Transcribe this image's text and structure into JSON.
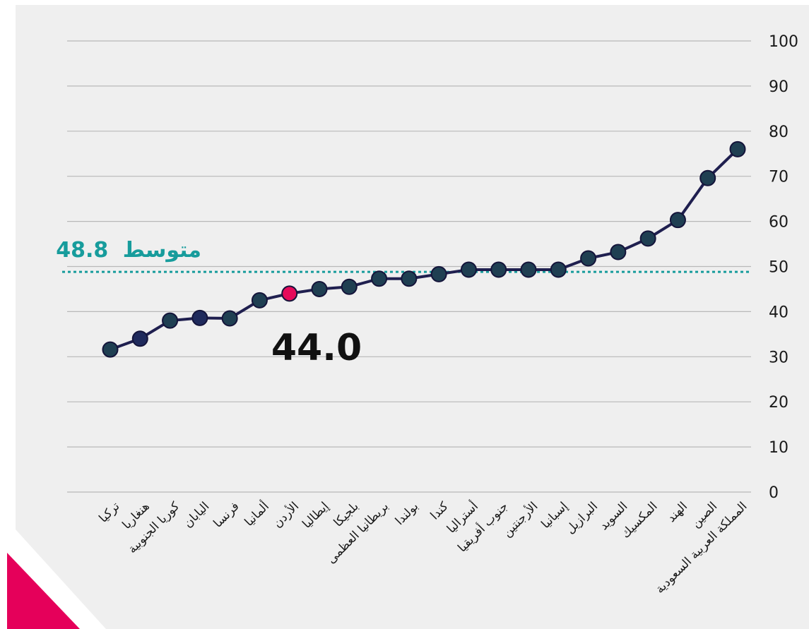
{
  "chart_data": {
    "type": "line",
    "categories": [
      "تركيا",
      "هنغاريا",
      "كوريا الجنوبية",
      "اليابان",
      "فرنسا",
      "ألمانيا",
      "الأردن",
      "إيطاليا",
      "بلجيكا",
      "بريطانيا العظمى",
      "بولندا",
      "كندا",
      "أستراليا",
      "جنوب أفريقيا",
      "الأرجنتين",
      "إسبانيا",
      "البرازيل",
      "السويد",
      "المكسيك",
      "الهند",
      "الصين",
      "المملكة العربية السعودية"
    ],
    "series": [
      {
        "values": [
          31.6,
          34.0,
          38.0,
          38.6,
          38.5,
          42.5,
          44.0,
          45.0,
          45.5,
          47.3,
          47.3,
          48.3,
          49.3,
          49.3,
          49.3,
          49.3,
          51.8,
          53.2,
          56.2,
          60.3,
          69.6,
          76.0
        ]
      }
    ],
    "highlight_index": 6,
    "highlight_label": "44.0",
    "average": {
      "value": 48.8,
      "label": "متوسط",
      "value_label": "48.8"
    },
    "ylim": [
      0,
      100
    ],
    "yticks": [
      0,
      10,
      20,
      30,
      40,
      50,
      60,
      70,
      80,
      90,
      100
    ],
    "grid": true,
    "colors": {
      "line": "#1f1f4f",
      "marker": "#1f3f52",
      "marker_alt": "#1f2a5c",
      "highlight": "#e50a5a",
      "average": "#179c9c",
      "corner": "#e5005a",
      "background": "#efefef",
      "grid": "#b8b8b8"
    }
  }
}
